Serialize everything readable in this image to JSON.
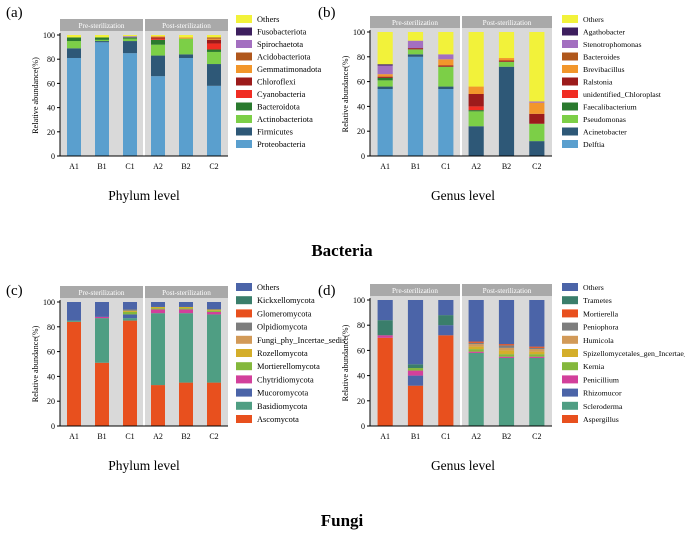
{
  "figure": {
    "group_labels": {
      "bacteria": "Bacteria",
      "fungi": "Fungi"
    }
  },
  "chart_data": [
    {
      "type": "bar",
      "stacked": true,
      "panel": "(a)",
      "xlabel": "Phylum level",
      "ylabel": "Relative abundance(%)",
      "ylim": [
        0,
        100
      ],
      "yticks": [
        0,
        20,
        40,
        60,
        80,
        100
      ],
      "conditions": [
        "Pre-sterilization",
        "Post-sterilization"
      ],
      "categories": [
        "A1",
        "B1",
        "C1",
        "A2",
        "B2",
        "C2"
      ],
      "series": [
        {
          "name": "Proteobacteria",
          "color": "#5a9fce",
          "values": [
            81,
            94,
            85,
            66,
            81,
            58
          ]
        },
        {
          "name": "Firmicutes",
          "color": "#2e5877",
          "values": [
            8,
            1,
            10,
            17,
            3,
            18
          ]
        },
        {
          "name": "Actinobacteriota",
          "color": "#7ccf47",
          "values": [
            6,
            1,
            2,
            9,
            13,
            10
          ]
        },
        {
          "name": "Bacteroidota",
          "color": "#2a7a2e",
          "values": [
            3,
            2,
            1,
            4,
            0,
            2
          ]
        },
        {
          "name": "Cyanobacteria",
          "color": "#f02d23",
          "values": [
            0,
            0,
            0,
            1,
            0,
            5
          ]
        },
        {
          "name": "Chloroflexi",
          "color": "#9c1b1b",
          "values": [
            0,
            0,
            0,
            1,
            0,
            3
          ]
        },
        {
          "name": "Gemmatimonadota",
          "color": "#f2962b",
          "values": [
            0,
            0,
            0,
            1,
            1,
            1
          ]
        },
        {
          "name": "Acidobacteriota",
          "color": "#b0571c",
          "values": [
            0,
            0,
            0,
            0,
            0,
            1
          ]
        },
        {
          "name": "Spirochaetota",
          "color": "#a36fc0",
          "values": [
            0,
            0,
            1,
            0,
            0,
            0
          ]
        },
        {
          "name": "Fusobacteriota",
          "color": "#3d1f5e",
          "values": [
            0,
            0,
            0,
            0,
            0,
            0
          ]
        },
        {
          "name": "Others",
          "color": "#f2f23a",
          "values": [
            2,
            2,
            1,
            1,
            2,
            2
          ]
        }
      ]
    },
    {
      "type": "bar",
      "stacked": true,
      "panel": "(b)",
      "xlabel": "Genus level",
      "ylabel": "Relative abundance(%)",
      "ylim": [
        0,
        100
      ],
      "yticks": [
        0,
        20,
        40,
        60,
        80,
        100
      ],
      "conditions": [
        "Pre-sterilization",
        "Post-sterilization"
      ],
      "categories": [
        "A1",
        "B1",
        "C1",
        "A2",
        "B2",
        "C2"
      ],
      "series": [
        {
          "name": "Delftia",
          "color": "#5a9fce",
          "values": [
            54,
            80,
            54,
            0,
            0,
            0
          ]
        },
        {
          "name": "Acinetobacter",
          "color": "#2e5877",
          "values": [
            2,
            2,
            2,
            24,
            72,
            12
          ]
        },
        {
          "name": "Pseudomonas",
          "color": "#7ccf47",
          "values": [
            5,
            4,
            16,
            12,
            4,
            14
          ]
        },
        {
          "name": "Faecalibacterium",
          "color": "#2a7a2e",
          "values": [
            2,
            0,
            0,
            1,
            0,
            0
          ]
        },
        {
          "name": "unidentified_Chloroplast",
          "color": "#f02d23",
          "values": [
            0,
            0,
            0,
            3,
            0,
            0
          ]
        },
        {
          "name": "Ralstonia",
          "color": "#9c1b1b",
          "values": [
            1,
            1,
            1,
            10,
            1,
            8
          ]
        },
        {
          "name": "Brevibacillus",
          "color": "#f2962b",
          "values": [
            2,
            0,
            5,
            6,
            2,
            9
          ]
        },
        {
          "name": "Bacteroides",
          "color": "#b0571c",
          "values": [
            0,
            0,
            0,
            0,
            0,
            0
          ]
        },
        {
          "name": "Stenotrophomonas",
          "color": "#a36fc0",
          "values": [
            7,
            6,
            4,
            0,
            0,
            1
          ]
        },
        {
          "name": "Agathobacter",
          "color": "#3d1f5e",
          "values": [
            1,
            0,
            0,
            0,
            0,
            0
          ]
        },
        {
          "name": "Others",
          "color": "#f2f23a",
          "values": [
            26,
            7,
            18,
            44,
            21,
            56
          ]
        }
      ]
    },
    {
      "type": "bar",
      "stacked": true,
      "panel": "(c)",
      "xlabel": "Phylum level",
      "ylabel": "Relative abundance(%)",
      "ylim": [
        0,
        100
      ],
      "yticks": [
        0,
        20,
        40,
        60,
        80,
        100
      ],
      "conditions": [
        "Pre-sterilization",
        "Post-sterilization"
      ],
      "categories": [
        "A1",
        "B1",
        "C1",
        "A2",
        "B2",
        "C2"
      ],
      "series": [
        {
          "name": "Ascomycota",
          "color": "#e8501e",
          "values": [
            84,
            51,
            85,
            33,
            35,
            35
          ]
        },
        {
          "name": "Basidiomycota",
          "color": "#4f9e83",
          "values": [
            1,
            36,
            2,
            58,
            56,
            55
          ]
        },
        {
          "name": "Mucoromycota",
          "color": "#4b64a8",
          "values": [
            0,
            0,
            3,
            0,
            0,
            0
          ]
        },
        {
          "name": "Chytridiomycota",
          "color": "#d2409b",
          "values": [
            0,
            1,
            0,
            3,
            3,
            2
          ]
        },
        {
          "name": "Mortierellomycota",
          "color": "#84b83c",
          "values": [
            0,
            0,
            2,
            1,
            1,
            1
          ]
        },
        {
          "name": "Rozellomycota",
          "color": "#d4ae2a",
          "values": [
            0,
            0,
            1,
            1,
            1,
            1
          ]
        },
        {
          "name": "Fungi_phy_Incertae_sedis",
          "color": "#d29a58",
          "values": [
            0,
            0,
            0,
            0,
            0,
            0
          ]
        },
        {
          "name": "Olpidiomycota",
          "color": "#7d7d7d",
          "values": [
            0,
            0,
            1,
            0,
            0,
            0
          ]
        },
        {
          "name": "Glomeromycota",
          "color": "#e8501e",
          "values": [
            0,
            0,
            0,
            0,
            0,
            0
          ]
        },
        {
          "name": "Kickxellomycota",
          "color": "#3a7e6b",
          "values": [
            0,
            0,
            0,
            0,
            0,
            0
          ]
        },
        {
          "name": "Others",
          "color": "#4b64a8",
          "values": [
            15,
            12,
            6,
            4,
            4,
            6
          ]
        }
      ]
    },
    {
      "type": "bar",
      "stacked": true,
      "panel": "(d)",
      "xlabel": "Genus level",
      "ylabel": "Relative abundance(%)",
      "ylim": [
        0,
        100
      ],
      "yticks": [
        0,
        20,
        40,
        60,
        80,
        100
      ],
      "conditions": [
        "Pre-sterilization",
        "Post-sterilization"
      ],
      "categories": [
        "A1",
        "B1",
        "C1",
        "A2",
        "B2",
        "C2"
      ],
      "series": [
        {
          "name": "Aspergillus",
          "color": "#e8501e",
          "values": [
            70,
            32,
            72,
            0,
            0,
            0
          ]
        },
        {
          "name": "Scleroderma",
          "color": "#4f9e83",
          "values": [
            0,
            0,
            0,
            58,
            54,
            54
          ]
        },
        {
          "name": "Rhizomucor",
          "color": "#4b64a8",
          "values": [
            0,
            8,
            8,
            0,
            0,
            0
          ]
        },
        {
          "name": "Penicillium",
          "color": "#d2409b",
          "values": [
            2,
            4,
            0,
            1,
            1,
            1
          ]
        },
        {
          "name": "Kernia",
          "color": "#84b83c",
          "values": [
            0,
            2,
            0,
            2,
            2,
            2
          ]
        },
        {
          "name": "Spizellomycetales_gen_Incertae_sedis",
          "color": "#d4ae2a",
          "values": [
            0,
            0,
            0,
            2,
            3,
            2
          ]
        },
        {
          "name": "Humicola",
          "color": "#d29a58",
          "values": [
            0,
            0,
            0,
            2,
            2,
            2
          ]
        },
        {
          "name": "Peniophora",
          "color": "#7d7d7d",
          "values": [
            0,
            0,
            0,
            1,
            2,
            1
          ]
        },
        {
          "name": "Mortierella",
          "color": "#e8501e",
          "values": [
            0,
            0,
            0,
            1,
            1,
            1
          ]
        },
        {
          "name": "Trametes",
          "color": "#3a7e6b",
          "values": [
            12,
            3,
            8,
            0,
            0,
            0
          ]
        },
        {
          "name": "Others",
          "color": "#4b64a8",
          "values": [
            16,
            51,
            12,
            33,
            35,
            37
          ]
        }
      ]
    }
  ]
}
